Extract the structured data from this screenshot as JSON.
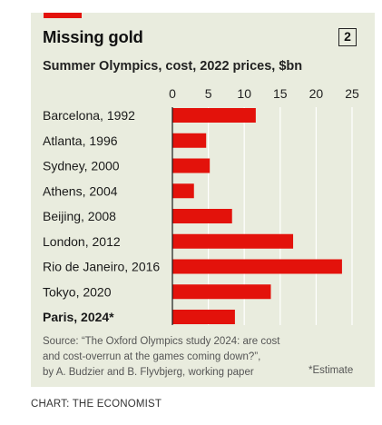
{
  "title": "Missing gold",
  "chart_number": "2",
  "subtitle": "Summer Olympics, cost, 2022 prices, $bn",
  "source": "Source: “The Oxford Olympics study 2024: are cost\nand cost-overrun at the games coming down?”,\nby A. Budzier and B. Flyvbjerg, working paper",
  "estimate_note": "*Estimate",
  "credit": "CHART: THE ECONOMIST",
  "colors": {
    "bar": "#e3120b",
    "background": "#e9ecde",
    "accent": "#e3120b",
    "gridline": "#ffffff"
  },
  "chart_data": {
    "type": "bar",
    "orientation": "horizontal",
    "title": "Missing gold",
    "subtitle": "Summer Olympics, cost, 2022 prices, $bn",
    "categories": [
      "Barcelona, 1992",
      "Atlanta, 1996",
      "Sydney, 2000",
      "Athens, 2004",
      "Beijing, 2008",
      "London, 2012",
      "Rio de Janeiro, 2016",
      "Tokyo, 2020",
      "Paris, 2024*"
    ],
    "highlighted": [
      "Paris, 2024*"
    ],
    "values": [
      11.6,
      4.7,
      5.2,
      3.0,
      8.3,
      16.8,
      23.6,
      13.7,
      8.7
    ],
    "xlim": [
      0,
      25
    ],
    "xticks": [
      "0",
      "5",
      "10",
      "15",
      "20",
      "25"
    ],
    "xaxis_position": "top",
    "grid": true,
    "legend": "none"
  }
}
